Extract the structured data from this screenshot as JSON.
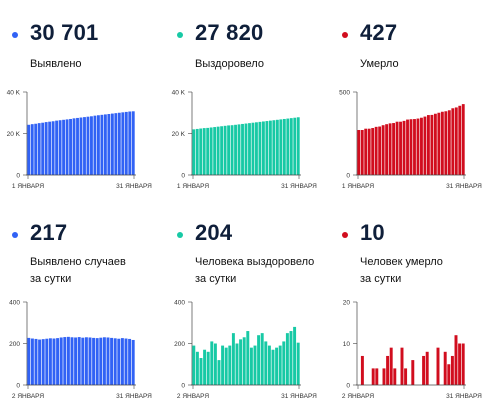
{
  "colors": {
    "blue": "#3162f5",
    "teal": "#17c9a5",
    "red": "#d10d1e",
    "axis": "#444444",
    "gridline": "#e3e3e3"
  },
  "cards": [
    {
      "value": "30 701",
      "label1": "Выявлено",
      "label2": "",
      "color": "#3162f5"
    },
    {
      "value": "27 820",
      "label1": "Выздоровело",
      "label2": "",
      "color": "#17c9a5"
    },
    {
      "value": "427",
      "label1": "Умерло",
      "label2": "",
      "color": "#d10d1e"
    },
    {
      "value": "217",
      "label1": "Выявлено случаев",
      "label2": "за сутки",
      "color": "#3162f5"
    },
    {
      "value": "204",
      "label1": "Человека выздоровело",
      "label2": "за сутки",
      "color": "#17c9a5"
    },
    {
      "value": "10",
      "label1": "Человек умерло",
      "label2": "за сутки",
      "color": "#d10d1e"
    }
  ],
  "chart_data": [
    {
      "type": "bar",
      "color": "#3162f5",
      "ylim": [
        0,
        40000
      ],
      "yticks": [
        {
          "v": 0,
          "t": "0"
        },
        {
          "v": 20000,
          "t": "20 K"
        },
        {
          "v": 40000,
          "t": "40 K"
        }
      ],
      "xstart": "1 ЯНВАРЯ",
      "xend": "31 ЯНВАРЯ",
      "values": [
        24200,
        24500,
        24700,
        25000,
        25200,
        25500,
        25700,
        25900,
        26200,
        26400,
        26600,
        26800,
        27000,
        27300,
        27500,
        27700,
        27900,
        28100,
        28300,
        28600,
        28800,
        29000,
        29200,
        29400,
        29600,
        29800,
        30000,
        30200,
        30400,
        30600,
        30701
      ]
    },
    {
      "type": "bar",
      "color": "#17c9a5",
      "ylim": [
        0,
        40000
      ],
      "yticks": [
        {
          "v": 0,
          "t": "0"
        },
        {
          "v": 20000,
          "t": "20 K"
        },
        {
          "v": 40000,
          "t": "40 K"
        }
      ],
      "xstart": "1 ЯНВАРЯ",
      "xend": "31 ЯНВАРЯ",
      "values": [
        22000,
        22200,
        22400,
        22600,
        22700,
        22900,
        23100,
        23300,
        23500,
        23700,
        23900,
        24000,
        24200,
        24400,
        24600,
        24800,
        25000,
        25200,
        25400,
        25600,
        25800,
        26000,
        26200,
        26400,
        26600,
        26800,
        27000,
        27200,
        27400,
        27600,
        27820
      ]
    },
    {
      "type": "bar",
      "color": "#d10d1e",
      "ylim": [
        0,
        500
      ],
      "yticks": [
        {
          "v": 0,
          "t": "0"
        },
        {
          "v": 500,
          "t": "500"
        }
      ],
      "xstart": "1 ЯНВАРЯ",
      "xend": "31 ЯНВАРЯ",
      "values": [
        271,
        271,
        279,
        279,
        283,
        290,
        292,
        300,
        306,
        311,
        313,
        321,
        321,
        326,
        334,
        336,
        337,
        340,
        345,
        352,
        361,
        362,
        369,
        375,
        381,
        384,
        390,
        402,
        407,
        417,
        427
      ]
    },
    {
      "type": "bar",
      "color": "#3162f5",
      "ylim": [
        0,
        400
      ],
      "yticks": [
        {
          "v": 0,
          "t": "0"
        },
        {
          "v": 200,
          "t": "200"
        },
        {
          "v": 400,
          "t": "400"
        }
      ],
      "xstart": "2 ЯНВАРЯ",
      "xend": "31 ЯНВАРЯ",
      "values": [
        227,
        224,
        222,
        219,
        221,
        223,
        225,
        224,
        226,
        229,
        231,
        232,
        230,
        229,
        231,
        228,
        230,
        229,
        227,
        226,
        228,
        230,
        229,
        227,
        225,
        223,
        226,
        224,
        222,
        217
      ]
    },
    {
      "type": "bar",
      "color": "#17c9a5",
      "ylim": [
        0,
        400
      ],
      "yticks": [
        {
          "v": 0,
          "t": "0"
        },
        {
          "v": 200,
          "t": "200"
        },
        {
          "v": 400,
          "t": "400"
        }
      ],
      "xstart": "2 ЯНВАРЯ",
      "xend": "31 ЯНВАРЯ",
      "values": [
        190,
        160,
        130,
        170,
        160,
        210,
        200,
        120,
        190,
        180,
        190,
        250,
        200,
        220,
        230,
        260,
        180,
        190,
        240,
        250,
        210,
        190,
        170,
        180,
        190,
        210,
        250,
        260,
        280,
        204
      ]
    },
    {
      "type": "bar",
      "color": "#d10d1e",
      "ylim": [
        0,
        20
      ],
      "yticks": [
        {
          "v": 0,
          "t": "0"
        },
        {
          "v": 10,
          "t": "10"
        },
        {
          "v": 20,
          "t": "20"
        }
      ],
      "xstart": "2 ЯНВАРЯ",
      "xend": "31 ЯНВАРЯ",
      "values": [
        0,
        7,
        0,
        0,
        4,
        4,
        0,
        4,
        7,
        9,
        4,
        0,
        9,
        4,
        0,
        6,
        0,
        0,
        7,
        8,
        0,
        0,
        9,
        0,
        8,
        5,
        7,
        12,
        10,
        10
      ]
    }
  ]
}
